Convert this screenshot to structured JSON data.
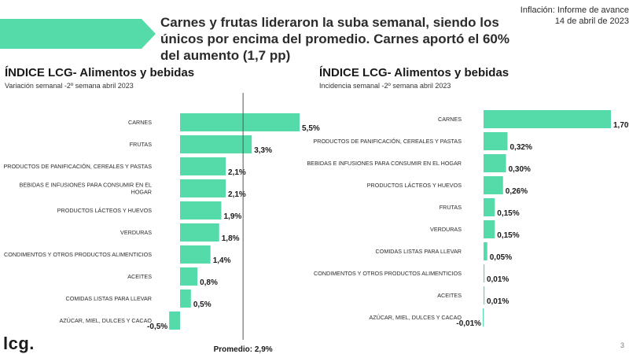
{
  "header": {
    "headline": "Carnes y frutas lideraron la suba semanal, siendo los únicos por encima del promedio. Carnes aportó el 60% del aumento (1,7 pp)",
    "report_name": "Inflación: Informe de avance",
    "report_date": "14 de abril de 2023"
  },
  "colors": {
    "bar": "#55dba9",
    "banner": "#55dba9",
    "reference_line": "#555555"
  },
  "chart_data": [
    {
      "type": "bar",
      "orientation": "horizontal",
      "title": "ÍNDICE LCG- Alimentos y bebidas",
      "subtitle": "Variación semanal -2º semana abril 2023",
      "categories": [
        "CARNES",
        "FRUTAS",
        "PRODUCTOS DE PANIFICACIÓN, CEREALES Y PASTAS",
        "BEBIDAS E INFUSIONES PARA CONSUMIR EN EL HOGAR",
        "PRODUCTOS LÁCTEOS Y HUEVOS",
        "VERDURAS",
        "CONDIMENTOS Y OTROS PRODUCTOS ALIMENTICIOS",
        "ACEITES",
        "COMIDAS LISTAS PARA LLEVAR",
        "AZÚCAR, MIEL, DULCES Y CACAO"
      ],
      "values": [
        5.5,
        3.3,
        2.1,
        2.1,
        1.9,
        1.8,
        1.4,
        0.8,
        0.5,
        -0.5
      ],
      "data_labels": [
        "5,5%",
        "3,3%",
        "2,1%",
        "2,1%",
        "1,9%",
        "1,8%",
        "1,4%",
        "0,8%",
        "0,5%",
        "-0,5%"
      ],
      "reference_line": {
        "value": 2.9,
        "label": "Promedio: 2,9%"
      }
    },
    {
      "type": "bar",
      "orientation": "horizontal",
      "title": "ÍNDICE LCG- Alimentos y bebidas",
      "subtitle": "Incidencia semanal -2º semana abril 2023",
      "categories": [
        "CARNES",
        "PRODUCTOS DE PANIFICACIÓN, CEREALES Y PASTAS",
        "BEBIDAS E INFUSIONES PARA CONSUMIR EN EL HOGAR",
        "PRODUCTOS LÁCTEOS Y HUEVOS",
        "FRUTAS",
        "VERDURAS",
        "COMIDAS LISTAS PARA LLEVAR",
        "CONDIMENTOS Y OTROS PRODUCTOS ALIMENTICIOS",
        "ACEITES",
        "AZÚCAR, MIEL, DULCES Y CACAO"
      ],
      "values": [
        1.7,
        0.32,
        0.3,
        0.26,
        0.15,
        0.15,
        0.05,
        0.01,
        0.01,
        -0.01
      ],
      "data_labels": [
        "1,70%",
        "0,32%",
        "0,30%",
        "0,26%",
        "0,15%",
        "0,15%",
        "0,05%",
        "0,01%",
        "0,01%",
        "-0,01%"
      ]
    }
  ],
  "footer": {
    "logo": "lcg.",
    "page_number": "3"
  }
}
